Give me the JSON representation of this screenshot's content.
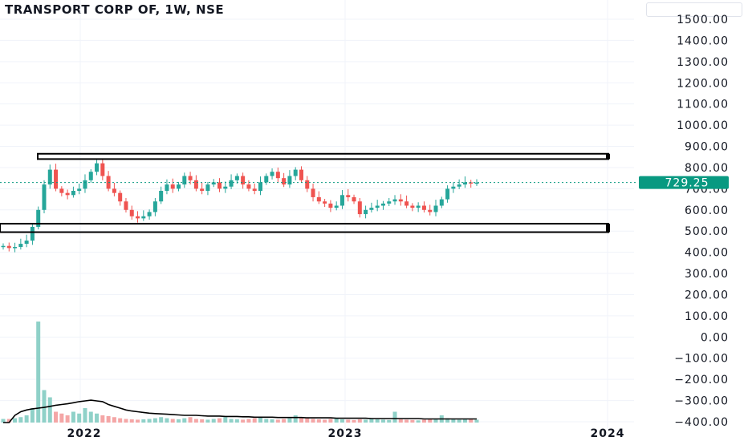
{
  "header": {
    "title": "TRANSPORT CORP OF, 1W, NSE"
  },
  "colors": {
    "up": "#26a69a",
    "down": "#ef5350",
    "upVol": "#8fd1c8",
    "downVol": "#f4a6a6",
    "priceTag": "#089981",
    "grid": "#f0f3fa"
  },
  "chart_data": {
    "type": "candlestick",
    "ylim": [
      -400,
      1500
    ],
    "y_ticks": [
      "1500.00",
      "1400.00",
      "1300.00",
      "1200.00",
      "1100.00",
      "1000.00",
      "900.00",
      "800.00",
      "700.00",
      "600.00",
      "500.00",
      "400.00",
      "300.00",
      "200.00",
      "100.00",
      "0.00",
      "−100.00",
      "−200.00",
      "−300.00",
      "−400.00"
    ],
    "x_labels": [
      "2022",
      "2023",
      "2024"
    ],
    "last_price": "729.25",
    "last_value": 729.25,
    "zones": [
      {
        "name": "resistance-zone",
        "low": 840,
        "high": 865
      },
      {
        "name": "support-zone",
        "low": 495,
        "high": 535
      }
    ],
    "closes": [
      430,
      420,
      425,
      440,
      455,
      520,
      600,
      720,
      790,
      700,
      680,
      670,
      690,
      700,
      740,
      780,
      820,
      760,
      700,
      680,
      640,
      600,
      570,
      560,
      570,
      590,
      640,
      690,
      720,
      700,
      720,
      760,
      740,
      700,
      690,
      720,
      730,
      700,
      710,
      740,
      760,
      720,
      700,
      690,
      730,
      760,
      780,
      750,
      720,
      760,
      790,
      740,
      700,
      660,
      640,
      630,
      610,
      620,
      670,
      660,
      640,
      580,
      600,
      610,
      620,
      630,
      640,
      650,
      640,
      620,
      610,
      620,
      600,
      590,
      620,
      650,
      700,
      710,
      720,
      730,
      725,
      729
    ],
    "volumes": [
      10,
      10,
      12,
      15,
      20,
      40,
      280,
      90,
      70,
      30,
      25,
      20,
      30,
      25,
      40,
      30,
      25,
      20,
      18,
      15,
      12,
      10,
      9,
      8,
      9,
      10,
      12,
      15,
      12,
      10,
      9,
      12,
      15,
      10,
      9,
      8,
      10,
      12,
      15,
      10,
      9,
      8,
      10,
      12,
      15,
      10,
      9,
      8,
      10,
      12,
      20,
      15,
      12,
      10,
      9,
      8,
      10,
      12,
      9,
      8,
      7,
      9,
      8,
      10,
      9,
      8,
      7,
      30,
      9,
      8,
      7,
      6,
      8,
      9,
      10,
      20,
      12,
      9,
      8,
      9,
      10,
      8
    ],
    "ma": [
      0,
      0,
      20,
      30,
      35,
      38,
      40,
      42,
      45,
      48,
      50,
      52,
      55,
      58,
      60,
      62,
      60,
      58,
      50,
      45,
      40,
      35,
      32,
      30,
      28,
      26,
      25,
      24,
      23,
      22,
      21,
      20,
      20,
      20,
      19,
      18,
      18,
      18,
      17,
      17,
      17,
      16,
      16,
      15,
      15,
      15,
      15,
      14,
      14,
      14,
      14,
      14,
      13,
      13,
      13,
      13,
      13,
      12,
      12,
      12,
      12,
      12,
      12,
      11,
      11,
      11,
      11,
      11,
      11,
      11,
      11,
      11,
      10,
      10,
      10,
      10,
      10,
      10,
      10,
      10,
      10,
      10
    ]
  }
}
